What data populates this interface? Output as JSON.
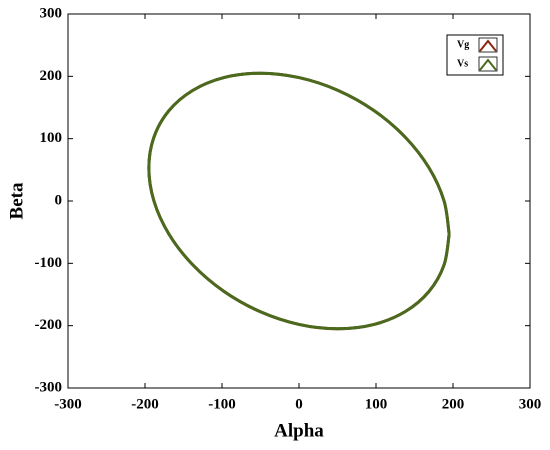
{
  "chart_data": {
    "type": "line",
    "x_label": "Alpha",
    "y_label": "Beta",
    "xlim": [
      -300,
      300
    ],
    "ylim": [
      -300,
      300
    ],
    "xticks": [
      -300,
      -200,
      -100,
      0,
      100,
      200,
      300
    ],
    "yticks": [
      -300,
      -200,
      -100,
      0,
      100,
      200,
      300
    ],
    "legend": "upper right",
    "series": [
      {
        "name": "Vg",
        "color": "#8b2a10",
        "x": [
          195,
          188.4,
          168.9,
          137.9,
          97.5,
          50.5,
          0,
          -50.5,
          -97.5,
          -137.9,
          -168.9,
          -188.4,
          -195,
          -188.4,
          -168.9,
          -137.9,
          -97.5,
          -50.5,
          0,
          50.5,
          97.5,
          137.9,
          168.9,
          188.4,
          195
        ],
        "values": [
          -53.1,
          0,
          53.1,
          102.5,
          145.0,
          177.5,
          198.0,
          205,
          198.0,
          177.5,
          145.0,
          102.5,
          53.1,
          0,
          -53.1,
          -102.5,
          -145.0,
          -177.5,
          -198.0,
          -205,
          -198.0,
          -177.5,
          -145.0,
          -102.5,
          -53.1
        ]
      },
      {
        "name": "Vs",
        "color": "#4a6a1e",
        "x": [
          195,
          188.4,
          168.9,
          137.9,
          97.5,
          50.5,
          0,
          -50.5,
          -97.5,
          -137.9,
          -168.9,
          -188.4,
          -195,
          -188.4,
          -168.9,
          -137.9,
          -97.5,
          -50.5,
          0,
          50.5,
          97.5,
          137.9,
          168.9,
          188.4,
          195
        ],
        "values": [
          -53.1,
          0,
          53.1,
          102.5,
          145.0,
          177.5,
          198.0,
          205,
          198.0,
          177.5,
          145.0,
          102.5,
          53.1,
          0,
          -53.1,
          -102.5,
          -145.0,
          -177.5,
          -198.0,
          -205,
          -198.0,
          -177.5,
          -145.0,
          -102.5,
          -53.1
        ]
      }
    ]
  }
}
